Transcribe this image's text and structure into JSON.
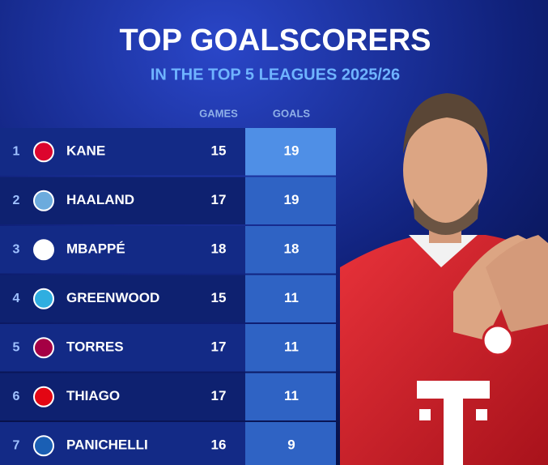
{
  "header": {
    "title": "TOP GOALSCORERS",
    "subtitle": "IN THE TOP 5 LEAGUES 2025/26"
  },
  "table": {
    "columns": [
      "GAMES",
      "GOALS"
    ],
    "rows": [
      {
        "rank": "1",
        "name": "KANE",
        "games": 15,
        "goals": 19
      },
      {
        "rank": "2",
        "name": "HAALAND",
        "games": 17,
        "goals": 19
      },
      {
        "rank": "3",
        "name": "MBAPPÉ",
        "games": 18,
        "goals": 18
      },
      {
        "rank": "4",
        "name": "GREENWOOD",
        "games": 15,
        "goals": 11
      },
      {
        "rank": "5",
        "name": "TORRES",
        "games": 17,
        "goals": 11
      },
      {
        "rank": "6",
        "name": "THIAGO",
        "games": 17,
        "goals": 11
      },
      {
        "rank": "7",
        "name": "PANICHELLI",
        "games": 16,
        "goals": 9
      }
    ]
  }
}
